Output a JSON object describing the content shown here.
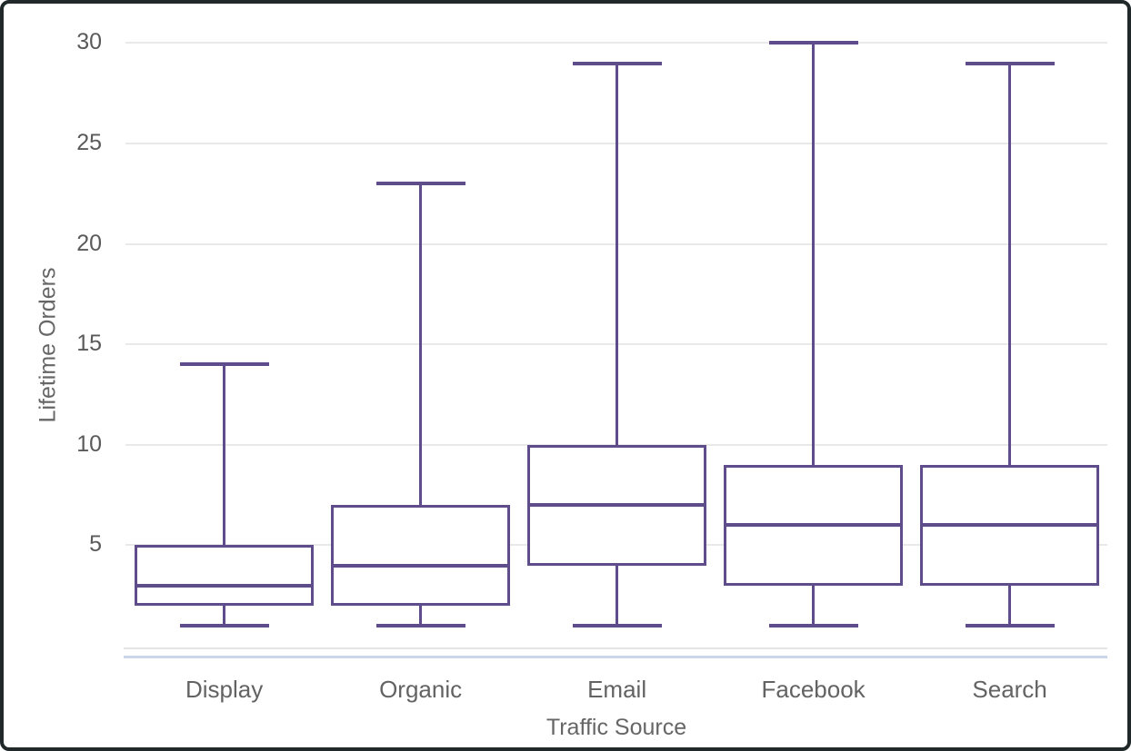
{
  "chart_data": {
    "type": "boxplot",
    "title": "",
    "xlabel": "Traffic Source",
    "ylabel": "Lifetime Orders",
    "categories": [
      "Display",
      "Organic",
      "Email",
      "Facebook",
      "Search"
    ],
    "series": [
      {
        "name": "Display",
        "low": 1,
        "q1": 2,
        "median": 3,
        "q3": 5,
        "high": 14
      },
      {
        "name": "Organic",
        "low": 1,
        "q1": 2,
        "median": 4,
        "q3": 7,
        "high": 23
      },
      {
        "name": "Email",
        "low": 1,
        "q1": 4,
        "median": 7,
        "q3": 10,
        "high": 29
      },
      {
        "name": "Facebook",
        "low": 1,
        "q1": 3,
        "median": 6,
        "q3": 9,
        "high": 30
      },
      {
        "name": "Search",
        "low": 1,
        "q1": 3,
        "median": 6,
        "q3": 9,
        "high": 29
      }
    ],
    "yticks": [
      5,
      10,
      15,
      20,
      25,
      30
    ],
    "ylim": [
      0,
      30
    ],
    "grid": true,
    "legend": "none",
    "colors": {
      "box": "#5e4c8b",
      "grid": "#e9e9e9",
      "plot_bottom_line": "#e4e4e4",
      "axis_line": "#cbd6ea",
      "tick_text": "#5a5a5a",
      "category_text": "#636363",
      "title_text": "#666666"
    }
  }
}
